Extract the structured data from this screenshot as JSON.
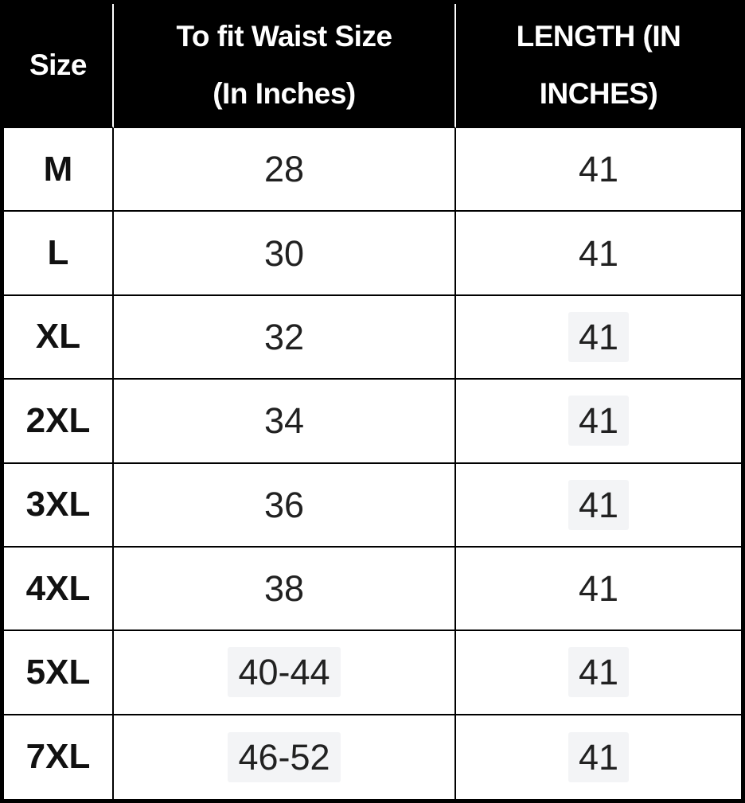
{
  "header": {
    "size_label": "Size",
    "waist_line1": "To fit Waist Size",
    "waist_line2": "(In Inches)",
    "length_line1": "LENGTH (IN",
    "length_line2": "INCHES)"
  },
  "chart_data": {
    "type": "table",
    "columns": [
      "Size",
      "To fit Waist Size (In Inches)",
      "LENGTH (IN INCHES)"
    ],
    "rows": [
      {
        "size": "M",
        "waist": "28",
        "length": "41",
        "waist_highlighted": false,
        "length_highlighted": false
      },
      {
        "size": "L",
        "waist": "30",
        "length": "41",
        "waist_highlighted": false,
        "length_highlighted": false
      },
      {
        "size": "XL",
        "waist": "32",
        "length": "41",
        "waist_highlighted": false,
        "length_highlighted": true
      },
      {
        "size": "2XL",
        "waist": "34",
        "length": "41",
        "waist_highlighted": false,
        "length_highlighted": true
      },
      {
        "size": "3XL",
        "waist": "36",
        "length": "41",
        "waist_highlighted": false,
        "length_highlighted": true
      },
      {
        "size": "4XL",
        "waist": "38",
        "length": "41",
        "waist_highlighted": false,
        "length_highlighted": false
      },
      {
        "size": "5XL",
        "waist": "40-44",
        "length": "41",
        "waist_highlighted": true,
        "length_highlighted": true
      },
      {
        "size": "7XL",
        "waist": "46-52",
        "length": "41",
        "waist_highlighted": true,
        "length_highlighted": true
      }
    ]
  },
  "colors": {
    "header_bg": "#000000",
    "header_text": "#ffffff",
    "body_text": "#212121",
    "border": "#000000",
    "highlight_bg": "#f3f4f6"
  }
}
